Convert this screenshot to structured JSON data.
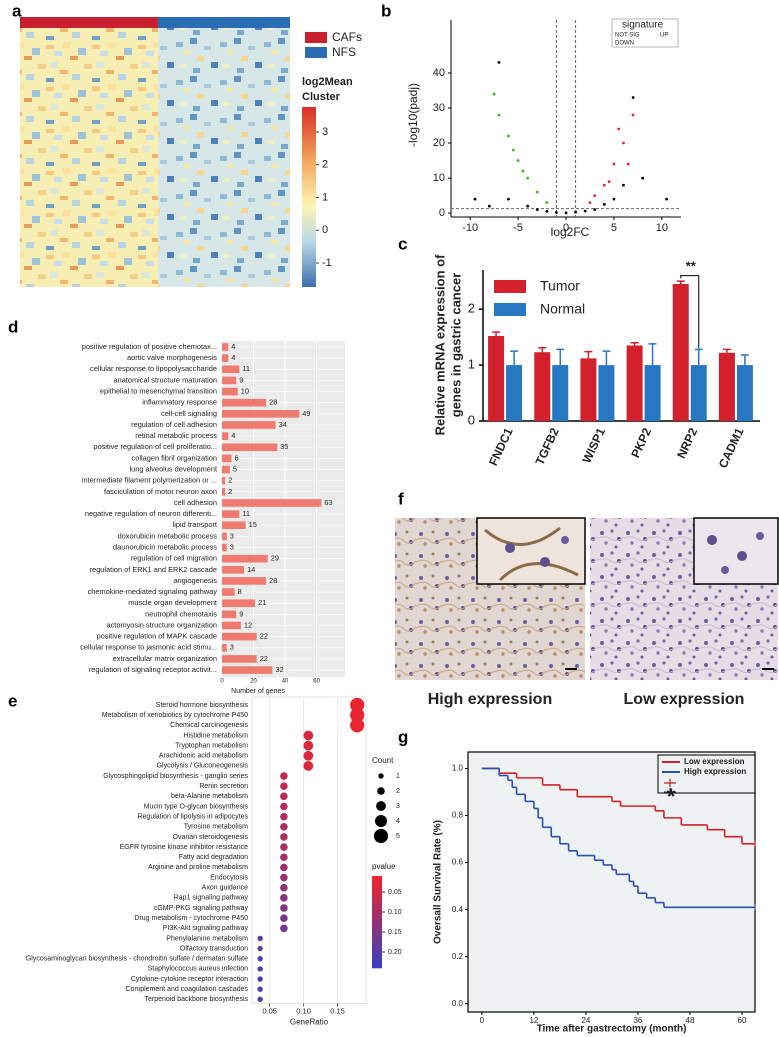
{
  "chart_data": [
    {
      "type": "heatmap",
      "panel": "a",
      "legend": [
        {
          "name": "CAFs",
          "color": "#c8202f"
        },
        {
          "name": "NFS",
          "color": "#2a6db5"
        }
      ],
      "colorbar_title": [
        "log2Mean",
        "Cluster"
      ],
      "clim": [
        -1.73,
        3.76
      ],
      "cticks": [
        -1,
        0,
        1,
        2,
        3
      ]
    },
    {
      "type": "scatter",
      "panel": "b",
      "xlabel": "log2FC",
      "ylabel": "-log10(padj)",
      "legend_title": "signature",
      "xlim": [
        -12,
        12
      ],
      "ylim": [
        -1.1,
        55.1
      ],
      "xticks": [
        -10,
        -5,
        0,
        5,
        10
      ],
      "yticks": [
        0,
        10,
        20,
        30,
        40
      ],
      "vlines": [
        -1,
        1
      ],
      "hline": 1.3,
      "series": [
        {
          "name": "NOT SIG",
          "color": "#000000",
          "x": [
            -9.5,
            -8,
            -6,
            -4,
            -3,
            -2,
            -1,
            0,
            1,
            2,
            3,
            4,
            5,
            6,
            8,
            10.5,
            -7,
            7
          ],
          "y": [
            4,
            2,
            4,
            2,
            1,
            0.5,
            0.2,
            0.1,
            0.3,
            0.6,
            1,
            2.5,
            4,
            8,
            10,
            4,
            43,
            33
          ]
        },
        {
          "name": "UP",
          "color": "#e3262b",
          "x": [
            2.5,
            3,
            4,
            4.5,
            5,
            5.5,
            6,
            6.5,
            7
          ],
          "y": [
            3,
            5,
            8,
            9,
            14,
            24,
            20,
            14,
            28
          ]
        },
        {
          "name": "DOWN",
          "color": "#3cb521",
          "x": [
            -2,
            -3,
            -4,
            -4.5,
            -5,
            -5.5,
            -6,
            -7,
            -7.5
          ],
          "y": [
            3,
            6,
            10,
            12,
            15,
            18,
            22,
            28,
            34
          ]
        }
      ]
    },
    {
      "type": "bar",
      "panel": "c",
      "ylabel": [
        "Relative mRNA expression of",
        "genes in gastric cancer"
      ],
      "categories": [
        "FNDC1",
        "TGFB2",
        "WISP1",
        "PKP2",
        "NRP2",
        "CADM1"
      ],
      "ylim": [
        0,
        2.7
      ],
      "yticks": [
        0,
        1,
        2
      ],
      "annotation": "**",
      "series": [
        {
          "name": "Tumor",
          "color": "#d2202c",
          "values": [
            1.52,
            1.23,
            1.12,
            1.35,
            2.45,
            1.22
          ],
          "errors": [
            0.07,
            0.08,
            0.12,
            0.05,
            0.05,
            0.06
          ]
        },
        {
          "name": "Normal",
          "color": "#2877c3",
          "values": [
            1,
            1,
            1,
            1,
            1,
            1
          ],
          "errors": [
            0.25,
            0.28,
            0.25,
            0.38,
            0.28,
            0.18
          ]
        }
      ]
    },
    {
      "type": "hbar",
      "panel": "d",
      "xlabel": "Number of genes",
      "color": "#ef7a6f",
      "categories": [
        "positive regulation of positive chemotax...",
        "aortic valve morphogenesis",
        "cellular response to lipopolysaccharide",
        "anatomical structure maturation",
        "epithelial to mesenchymal transition",
        "inflammatory response",
        "cell-cell signaling",
        "regulation of cell adhesion",
        "retinal metabolic process",
        "positive regulation of cell proliferatio...",
        "collagen fibril organization",
        "lung alveolus development",
        "intermediate filament polymerization or ...",
        "fasciculation of motor neuron axon",
        "cell adhesion",
        "negative regulation of neuron differenti...",
        "lipid transport",
        "doxorubicin metabolic process",
        "daunorubicin metabolic process",
        "regulation of cell migration",
        "regulation of ERK1 and ERK2 cascade",
        "angiogenesis",
        "chemokine-mediated signaling pathway",
        "muscle organ development",
        "neutrophil chemotaxis",
        "actomyosin structure organization",
        "positive regulation of MAPK cascade",
        "cellular response to jasmonic acid stimu...",
        "extracellular matrix organization",
        "regulation of signaling receptor activit..."
      ],
      "values": [
        4,
        4,
        11,
        9,
        10,
        28,
        49,
        34,
        4,
        35,
        6,
        5,
        2,
        2,
        63,
        11,
        15,
        3,
        3,
        29,
        14,
        28,
        8,
        21,
        9,
        12,
        22,
        3,
        22,
        32
      ],
      "xlim": [
        0,
        78
      ],
      "xticks": [
        0,
        20,
        40,
        60
      ]
    },
    {
      "type": "dot",
      "panel": "e",
      "xlabel": "GeneRatio",
      "size_title": "Count",
      "color_title": "pvalue",
      "categories": [
        "Steroid hormone biosynthesis",
        "Metabolism of xenobiotics by cytochrome P450",
        "Chemical carcinogenesis",
        "Histidine metabolism",
        "Tryptophan metabolism",
        "Arachidonic acid metabolism",
        "Glycolysis / Gluconeogenesis",
        "Glycosphingolipid biosynthesis - ganglio series",
        "Renin secretion",
        "beta-Alanine metabolism",
        "Mucin type O-glycan biosynthesis",
        "Regulation of lipolysis in adipocytes",
        "Tyrosine metabolism",
        "Ovarian steroidogenesis",
        "EGFR tyrosine kinase inhibitor resistance",
        "Fatty acid degradation",
        "Arginine and proline metabolism",
        "Endocytosis",
        "Axon guidance",
        "Rap1 signaling pathway",
        "cGMP-PKG signaling pathway",
        "Drug metabolism - cytochrome P450",
        "PI3K-Akt signaling pathway",
        "Phenylalanine metabolism",
        "Olfactory transduction",
        "Glycosaminoglycan biosynthesis - chondroitin sulfate / dermatan sulfate",
        "Staphylococcus aureus infection",
        "Cytokine-cytokine receptor interaction",
        "Complement and coagulation cascades",
        "Terpenoid backbone biosynthesis"
      ],
      "x": [
        0.179,
        0.179,
        0.179,
        0.107,
        0.107,
        0.107,
        0.107,
        0.071,
        0.071,
        0.071,
        0.071,
        0.071,
        0.071,
        0.071,
        0.071,
        0.071,
        0.071,
        0.071,
        0.071,
        0.071,
        0.071,
        0.071,
        0.071,
        0.036,
        0.036,
        0.036,
        0.036,
        0.036,
        0.036,
        0.036
      ],
      "count": [
        5,
        5,
        5,
        3,
        3,
        3,
        3,
        2,
        2,
        2,
        2,
        2,
        2,
        2,
        2,
        2,
        2,
        2,
        2,
        2,
        2,
        2,
        2,
        1,
        1,
        1,
        1,
        1,
        1,
        1
      ],
      "pvalue": [
        0.02,
        0.02,
        0.02,
        0.04,
        0.04,
        0.04,
        0.04,
        0.07,
        0.07,
        0.08,
        0.08,
        0.09,
        0.09,
        0.1,
        0.1,
        0.11,
        0.12,
        0.12,
        0.13,
        0.14,
        0.15,
        0.16,
        0.17,
        0.2,
        0.2,
        0.21,
        0.21,
        0.22,
        0.22,
        0.22
      ],
      "xlim": [
        0.024,
        0.192
      ],
      "xticks": [
        0.05,
        {
          "value": 0.1,
          "label": "0.10"
        },
        0.15
      ],
      "size_ticks": [
        1,
        2,
        3,
        4,
        5
      ],
      "clim": [
        0.01,
        0.24
      ],
      "cticks": [
        0.05,
        {
          "value": 0.1,
          "label": "0.10"
        },
        0.15,
        {
          "value": 0.2,
          "label": "0.20"
        }
      ],
      "colormap": [
        "#f0242a",
        "#3a3fbd"
      ]
    },
    {
      "type": "image",
      "panel": "f",
      "captions": [
        "High expression",
        "Low expression"
      ]
    },
    {
      "type": "line",
      "panel": "g",
      "xlabel": "Time after gastrectomy (month)",
      "ylabel": "Oversall Survival Rate (%)",
      "annotation": "*",
      "xlim": [
        -3.2,
        63
      ],
      "ylim": [
        -0.035,
        1.07
      ],
      "xticks": [
        0,
        12,
        24,
        36,
        48,
        60
      ],
      "yticks": [
        {
          "value": 0,
          "label": "0.0"
        },
        0.2,
        0.4,
        0.6,
        0.8,
        {
          "value": 1,
          "label": "1.0"
        }
      ],
      "series": [
        {
          "name": "Low expression",
          "color": "#d2202c",
          "x": [
            0,
            4,
            8,
            14,
            18,
            22,
            30,
            32,
            40,
            42,
            46,
            52,
            56,
            60,
            63
          ],
          "y": [
            1,
            0.98,
            0.96,
            0.93,
            0.91,
            0.88,
            0.86,
            0.84,
            0.82,
            0.79,
            0.76,
            0.74,
            0.71,
            0.68,
            0.68
          ]
        },
        {
          "name": "High expression",
          "color": "#2b4fb0",
          "x": [
            0,
            4,
            6,
            7,
            8,
            10,
            12,
            13,
            14,
            16,
            18,
            20,
            22,
            26,
            28,
            30,
            31,
            34,
            35,
            36,
            38,
            40,
            42,
            63
          ],
          "y": [
            1,
            0.97,
            0.95,
            0.92,
            0.89,
            0.86,
            0.83,
            0.79,
            0.75,
            0.71,
            0.68,
            0.65,
            0.63,
            0.61,
            0.59,
            0.57,
            0.55,
            0.52,
            0.5,
            0.47,
            0.45,
            0.43,
            0.41,
            0.41
          ]
        }
      ]
    }
  ]
}
